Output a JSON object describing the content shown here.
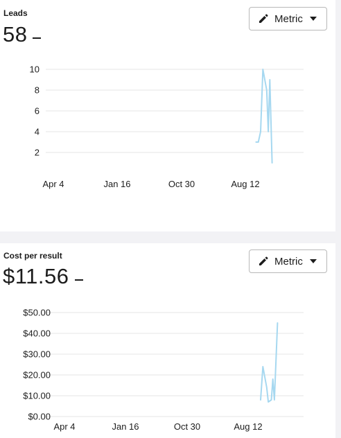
{
  "leads_card": {
    "label": "Leads",
    "value": "58",
    "button_label": "Metric"
  },
  "cost_card": {
    "label": "Cost per result",
    "value": "$11.56",
    "button_label": "Metric"
  },
  "chart_data": [
    {
      "type": "line",
      "title": "",
      "xlabel": "",
      "ylabel": "",
      "x_ticks": [
        "Apr 4",
        "Jan 16",
        "Oct 30",
        "Aug 12"
      ],
      "y_ticks": [
        "2",
        "4",
        "6",
        "8",
        "10"
      ],
      "ylim": [
        0,
        11
      ],
      "grid": true,
      "series_color": "#a6d8f0",
      "series": [
        {
          "values": [
            {
              "x": 0.8155,
              "y": 3
            },
            {
              "x": 0.8244,
              "y": 3
            },
            {
              "x": 0.8333,
              "y": 4
            },
            {
              "x": 0.8423,
              "y": 10
            },
            {
              "x": 0.8571,
              "y": 8
            },
            {
              "x": 0.8631,
              "y": 4
            },
            {
              "x": 0.869,
              "y": 9
            },
            {
              "x": 0.878,
              "y": 1
            }
          ]
        }
      ]
    },
    {
      "type": "line",
      "title": "",
      "xlabel": "",
      "ylabel": "",
      "x_ticks": [
        "Apr 4",
        "Jan 16",
        "Oct 30",
        "Aug 12"
      ],
      "y_ticks": [
        "$0.00",
        "$10.00",
        "$20.00",
        "$30.00",
        "$40.00",
        "$50.00"
      ],
      "ylim": [
        0,
        50
      ],
      "grid": true,
      "series_color": "#a6d8f0",
      "series": [
        {
          "values": [
            {
              "x": 0.8333,
              "y": 8
            },
            {
              "x": 0.8423,
              "y": 24
            },
            {
              "x": 0.8571,
              "y": 14
            },
            {
              "x": 0.8631,
              "y": 7
            },
            {
              "x": 0.875,
              "y": 8
            },
            {
              "x": 0.881,
              "y": 18
            },
            {
              "x": 0.8869,
              "y": 8
            },
            {
              "x": 0.8988,
              "y": 45
            }
          ]
        }
      ]
    }
  ]
}
